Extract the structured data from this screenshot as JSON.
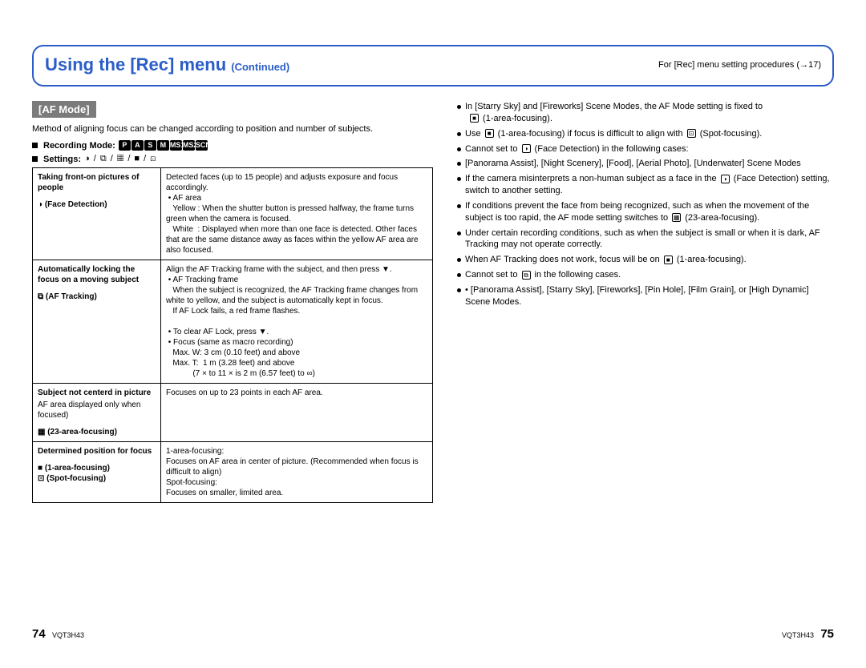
{
  "header": {
    "title_main": "Using the [Rec] menu",
    "title_sub": "(Continued)",
    "right_text": "For [Rec] menu setting procedures (→17)"
  },
  "section_label": "[AF Mode]",
  "intro": "Method of aligning focus can be changed according to position and number of subjects.",
  "recording_mode_label": "Recording Mode:",
  "recording_modes": [
    "P",
    "A",
    "S",
    "M",
    "MS1",
    "MS2",
    "SCN"
  ],
  "settings_label": "Settings:",
  "settings_icons_text": "◑ / ⧉ / ▦ / ■ / ⊡",
  "table": [
    {
      "k_title": "Taking front-on pictures of people",
      "k_icon_line": "◑ (Face Detection)",
      "v": "Detected faces (up to 15 people) and adjusts exposure and focus accordingly.\n • AF area\n   Yellow : When the shutter button is pressed halfway, the frame turns green when the camera is focused.\n   White  : Displayed when more than one face is detected. Other faces that are the same distance away as faces within the yellow AF area are also focused."
    },
    {
      "k_title": "Automatically locking the focus on a moving subject",
      "k_icon_line": "⧉ (AF Tracking)",
      "v": "Align the AF Tracking frame with the subject, and then press ▼.\n • AF Tracking frame\n   When the subject is recognized, the AF Tracking frame changes from white to yellow, and the subject is automatically kept in focus.\n   If AF Lock fails, a red frame flashes.\n\n • To clear AF Lock, press ▼.\n • Focus (same as macro recording)\n   Max. W: 3 cm (0.10 feet) and above\n   Max. T:  1 m (3.28 feet) and above\n            (7 × to 11 × is 2 m (6.57 feet) to ∞)"
    },
    {
      "k_title": "Subject not centerd in picture",
      "k_sub": "AF area displayed only when focused)",
      "k_icon_line": "▦ (23-area-focusing)",
      "v": "Focuses on up to 23 points in each AF area."
    },
    {
      "k_title": "Determined position for focus",
      "k_icon_line": "■ (1-area-focusing)\n⊡ (Spot-focusing)",
      "v": "1-area-focusing:\nFocuses on AF area in center of picture. (Recommended when focus is difficult to align)\nSpot-focusing:\nFocuses on smaller, limited area."
    }
  ],
  "right_bullets": [
    {
      "text": "In [Starry Sky] and [Fireworks] Scene Modes, the AF Mode setting is fixed to",
      "after_icon": "■",
      "after_text": " (1-area-focusing)."
    },
    {
      "pre_text": "Use ",
      "icon1": "■",
      "mid1": " (1-area-focusing) if focus is difficult to align with ",
      "icon2": "⊡",
      "post_text": " (Spot-focusing)."
    },
    {
      "pre_text": "Cannot set to ",
      "icon1": "◑",
      "post_text": " (Face Detection) in the following cases:",
      "sub": "[Panorama Assist], [Night Scenery], [Food], [Aerial Photo], [Underwater] Scene Modes"
    },
    {
      "pre_text": "If the camera misinterprets a non-human subject as a face in the ",
      "icon1": "◑",
      "post_text": " (Face Detection) setting, switch to another setting."
    },
    {
      "pre_text": "If conditions prevent the face from being recognized, such as when the movement of the subject is too rapid, the AF mode setting switches to ",
      "icon1": "▦",
      "post_text": " (23-area-focusing)."
    },
    {
      "text": "Under certain recording conditions, such as when the subject is small or when it is dark, AF Tracking may not operate correctly."
    },
    {
      "pre_text": "When AF Tracking does not work, focus will be on ",
      "icon1": "■",
      "post_text": " (1-area-focusing)."
    },
    {
      "pre_text": "Cannot set to ",
      "icon1": "⧉",
      "post_text": " in the following cases.",
      "sub": "• [Panorama Assist], [Starry Sky], [Fireworks], [Pin Hole], [Film Grain], or [High Dynamic] Scene Modes."
    }
  ],
  "footer": {
    "left_page": "74",
    "right_page": "75",
    "doc_id": "VQT3H43"
  }
}
